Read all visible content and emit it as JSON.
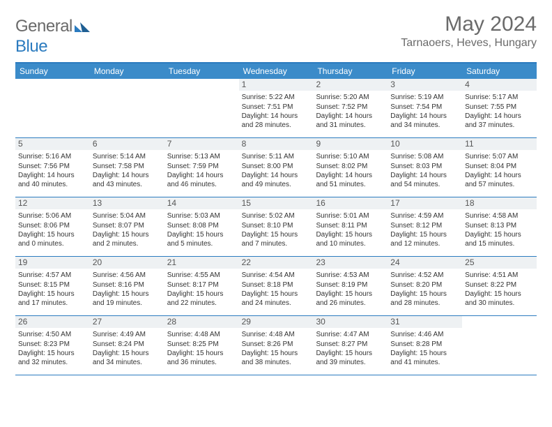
{
  "brand": {
    "name_a": "General",
    "name_b": "Blue"
  },
  "title": "May 2024",
  "location": "Tarnaoers, Heves, Hungary",
  "colors": {
    "header_bar": "#3b8bc9",
    "border": "#2b7bbf",
    "daynum_bg": "#eef1f3",
    "text_gray": "#6a6a6a",
    "text": "#333333",
    "white": "#ffffff"
  },
  "typography": {
    "title_fontsize": 30,
    "location_fontsize": 16,
    "weekday_fontsize": 12,
    "daynum_fontsize": 12,
    "detail_fontsize": 10
  },
  "weekdays": [
    "Sunday",
    "Monday",
    "Tuesday",
    "Wednesday",
    "Thursday",
    "Friday",
    "Saturday"
  ],
  "weeks": [
    [
      {
        "n": "",
        "t": ""
      },
      {
        "n": "",
        "t": ""
      },
      {
        "n": "",
        "t": ""
      },
      {
        "n": "1",
        "t": "Sunrise: 5:22 AM\nSunset: 7:51 PM\nDaylight: 14 hours and 28 minutes."
      },
      {
        "n": "2",
        "t": "Sunrise: 5:20 AM\nSunset: 7:52 PM\nDaylight: 14 hours and 31 minutes."
      },
      {
        "n": "3",
        "t": "Sunrise: 5:19 AM\nSunset: 7:54 PM\nDaylight: 14 hours and 34 minutes."
      },
      {
        "n": "4",
        "t": "Sunrise: 5:17 AM\nSunset: 7:55 PM\nDaylight: 14 hours and 37 minutes."
      }
    ],
    [
      {
        "n": "5",
        "t": "Sunrise: 5:16 AM\nSunset: 7:56 PM\nDaylight: 14 hours and 40 minutes."
      },
      {
        "n": "6",
        "t": "Sunrise: 5:14 AM\nSunset: 7:58 PM\nDaylight: 14 hours and 43 minutes."
      },
      {
        "n": "7",
        "t": "Sunrise: 5:13 AM\nSunset: 7:59 PM\nDaylight: 14 hours and 46 minutes."
      },
      {
        "n": "8",
        "t": "Sunrise: 5:11 AM\nSunset: 8:00 PM\nDaylight: 14 hours and 49 minutes."
      },
      {
        "n": "9",
        "t": "Sunrise: 5:10 AM\nSunset: 8:02 PM\nDaylight: 14 hours and 51 minutes."
      },
      {
        "n": "10",
        "t": "Sunrise: 5:08 AM\nSunset: 8:03 PM\nDaylight: 14 hours and 54 minutes."
      },
      {
        "n": "11",
        "t": "Sunrise: 5:07 AM\nSunset: 8:04 PM\nDaylight: 14 hours and 57 minutes."
      }
    ],
    [
      {
        "n": "12",
        "t": "Sunrise: 5:06 AM\nSunset: 8:06 PM\nDaylight: 15 hours and 0 minutes."
      },
      {
        "n": "13",
        "t": "Sunrise: 5:04 AM\nSunset: 8:07 PM\nDaylight: 15 hours and 2 minutes."
      },
      {
        "n": "14",
        "t": "Sunrise: 5:03 AM\nSunset: 8:08 PM\nDaylight: 15 hours and 5 minutes."
      },
      {
        "n": "15",
        "t": "Sunrise: 5:02 AM\nSunset: 8:10 PM\nDaylight: 15 hours and 7 minutes."
      },
      {
        "n": "16",
        "t": "Sunrise: 5:01 AM\nSunset: 8:11 PM\nDaylight: 15 hours and 10 minutes."
      },
      {
        "n": "17",
        "t": "Sunrise: 4:59 AM\nSunset: 8:12 PM\nDaylight: 15 hours and 12 minutes."
      },
      {
        "n": "18",
        "t": "Sunrise: 4:58 AM\nSunset: 8:13 PM\nDaylight: 15 hours and 15 minutes."
      }
    ],
    [
      {
        "n": "19",
        "t": "Sunrise: 4:57 AM\nSunset: 8:15 PM\nDaylight: 15 hours and 17 minutes."
      },
      {
        "n": "20",
        "t": "Sunrise: 4:56 AM\nSunset: 8:16 PM\nDaylight: 15 hours and 19 minutes."
      },
      {
        "n": "21",
        "t": "Sunrise: 4:55 AM\nSunset: 8:17 PM\nDaylight: 15 hours and 22 minutes."
      },
      {
        "n": "22",
        "t": "Sunrise: 4:54 AM\nSunset: 8:18 PM\nDaylight: 15 hours and 24 minutes."
      },
      {
        "n": "23",
        "t": "Sunrise: 4:53 AM\nSunset: 8:19 PM\nDaylight: 15 hours and 26 minutes."
      },
      {
        "n": "24",
        "t": "Sunrise: 4:52 AM\nSunset: 8:20 PM\nDaylight: 15 hours and 28 minutes."
      },
      {
        "n": "25",
        "t": "Sunrise: 4:51 AM\nSunset: 8:22 PM\nDaylight: 15 hours and 30 minutes."
      }
    ],
    [
      {
        "n": "26",
        "t": "Sunrise: 4:50 AM\nSunset: 8:23 PM\nDaylight: 15 hours and 32 minutes."
      },
      {
        "n": "27",
        "t": "Sunrise: 4:49 AM\nSunset: 8:24 PM\nDaylight: 15 hours and 34 minutes."
      },
      {
        "n": "28",
        "t": "Sunrise: 4:48 AM\nSunset: 8:25 PM\nDaylight: 15 hours and 36 minutes."
      },
      {
        "n": "29",
        "t": "Sunrise: 4:48 AM\nSunset: 8:26 PM\nDaylight: 15 hours and 38 minutes."
      },
      {
        "n": "30",
        "t": "Sunrise: 4:47 AM\nSunset: 8:27 PM\nDaylight: 15 hours and 39 minutes."
      },
      {
        "n": "31",
        "t": "Sunrise: 4:46 AM\nSunset: 8:28 PM\nDaylight: 15 hours and 41 minutes."
      },
      {
        "n": "",
        "t": ""
      }
    ]
  ]
}
